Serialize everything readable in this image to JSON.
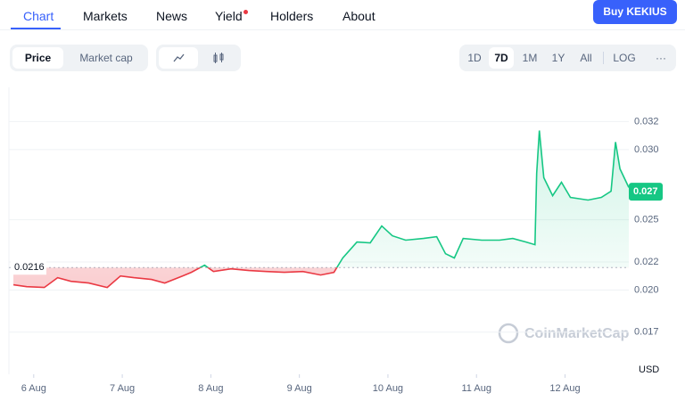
{
  "nav": {
    "tabs": [
      "Chart",
      "Markets",
      "News",
      "Yield",
      "Holders",
      "About"
    ],
    "button": "Buy KEKIUS"
  },
  "toggles": {
    "metric": [
      "Price",
      "Market cap"
    ],
    "ranges": [
      "1D",
      "7D",
      "1M",
      "1Y",
      "All",
      "LOG",
      "···"
    ]
  },
  "chart_data": {
    "type": "line",
    "currency": "USD",
    "watermark": "CoinMarketCap",
    "up_color": "#16c784",
    "down_color": "#ea3943",
    "grid": true,
    "baseline": 0.0216,
    "current_price": 0.027,
    "x": [
      5.77,
      5.92,
      6.12,
      6.27,
      6.42,
      6.62,
      6.83,
      6.98,
      7.13,
      7.33,
      7.48,
      7.68,
      7.78,
      7.93,
      8.03,
      8.23,
      8.43,
      8.63,
      8.83,
      9.04,
      9.24,
      9.39,
      9.49,
      9.65,
      9.8,
      9.93,
      10.05,
      10.2,
      10.4,
      10.55,
      10.65,
      10.75,
      10.85,
      11.06,
      11.26,
      11.41,
      11.56,
      11.66,
      11.68,
      11.71,
      11.76,
      11.86,
      11.96,
      12.06,
      12.26,
      12.41,
      12.52,
      12.57,
      12.62,
      12.72
    ],
    "values": [
      0.02037,
      0.02024,
      0.02018,
      0.02088,
      0.02062,
      0.0205,
      0.02018,
      0.021,
      0.02088,
      0.02075,
      0.0205,
      0.021,
      0.02126,
      0.02177,
      0.02132,
      0.02151,
      0.02139,
      0.02132,
      0.02126,
      0.02132,
      0.02107,
      0.02126,
      0.02228,
      0.02342,
      0.02336,
      0.02456,
      0.02386,
      0.02355,
      0.02367,
      0.0238,
      0.02259,
      0.02228,
      0.02367,
      0.02355,
      0.02355,
      0.02367,
      0.02342,
      0.02323,
      0.02831,
      0.03136,
      0.028,
      0.02672,
      0.02768,
      0.0266,
      0.02641,
      0.0266,
      0.02704,
      0.03054,
      0.02863,
      0.0273
    ],
    "xlim": [
      5.72,
      12.72
    ],
    "ylim": [
      0.014,
      0.0345
    ],
    "xticks": [
      {
        "value": 6,
        "label": "6 Aug"
      },
      {
        "value": 7,
        "label": "7 Aug"
      },
      {
        "value": 8,
        "label": "8 Aug"
      },
      {
        "value": 9,
        "label": "9 Aug"
      },
      {
        "value": 10,
        "label": "10 Aug"
      },
      {
        "value": 11,
        "label": "11 Aug"
      },
      {
        "value": 12,
        "label": "12 Aug"
      }
    ],
    "yticks": [
      0.032,
      {
        "value": 0.03,
        "label": "0.030"
      },
      0.025,
      0.022,
      {
        "value": 0.02,
        "label": "0.020"
      },
      0.017
    ]
  }
}
